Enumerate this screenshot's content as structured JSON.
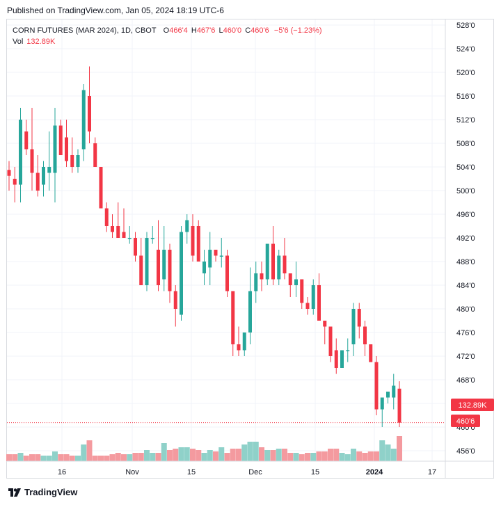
{
  "header": {
    "published": "Published on TradingView.com, Jan 05, 2024 18:19 UTC-6"
  },
  "legend": {
    "title": "CORN FUTURES (MAR 2024), 1D, CBOT",
    "o_label": "O",
    "o_value": "466'4",
    "h_label": "H",
    "h_value": "467'6",
    "l_label": "L",
    "l_value": "460'0",
    "c_label": "C",
    "c_value": "460'6",
    "change": "−5'6 (−1.23%)",
    "vol_label": "Vol",
    "vol_value": "132.89K"
  },
  "footer": {
    "brand": "TradingView"
  },
  "colors": {
    "up": "#26a69a",
    "down": "#f23645",
    "vol_up": "#8fd1c9",
    "vol_down": "#f49a9f",
    "grid": "#f0f3fa",
    "text": "#131722",
    "axis": "#d9dbe0"
  },
  "chart_data": {
    "type": "candlestick",
    "x_tick_labels": [
      "16",
      "Nov",
      "15",
      "Dec",
      "15",
      "2024",
      "17"
    ],
    "y_tick_labels": [
      "456'0",
      "460'0",
      "464'0",
      "468'0",
      "472'0",
      "476'0",
      "480'0",
      "484'0",
      "488'0",
      "492'0",
      "496'0",
      "500'0",
      "504'0",
      "508'0",
      "512'0",
      "516'0",
      "520'0",
      "524'0",
      "528'0"
    ],
    "y_range": [
      455,
      528
    ],
    "last_price_label": "460'6",
    "volume_label": "132.89K",
    "candles": [
      {
        "o": 503.5,
        "h": 505,
        "l": 500,
        "c": 502.5,
        "v": 0.05
      },
      {
        "o": 502,
        "h": 504,
        "l": 498,
        "c": 501,
        "v": 0.05
      },
      {
        "o": 501,
        "h": 514,
        "l": 498,
        "c": 512,
        "v": 0.06
      },
      {
        "o": 510,
        "h": 512,
        "l": 506,
        "c": 507,
        "v": 0.04
      },
      {
        "o": 507,
        "h": 514,
        "l": 500,
        "c": 503,
        "v": 0.05
      },
      {
        "o": 503,
        "h": 506,
        "l": 499,
        "c": 500,
        "v": 0.05
      },
      {
        "o": 501,
        "h": 505,
        "l": 499,
        "c": 504,
        "v": 0.04
      },
      {
        "o": 503,
        "h": 510,
        "l": 500,
        "c": 504,
        "v": 0.04
      },
      {
        "o": 503,
        "h": 514,
        "l": 498,
        "c": 511,
        "v": 0.07
      },
      {
        "o": 511,
        "h": 512,
        "l": 506,
        "c": 506,
        "v": 0.05
      },
      {
        "o": 509,
        "h": 512,
        "l": 504,
        "c": 505,
        "v": 0.05
      },
      {
        "o": 506,
        "h": 509,
        "l": 503,
        "c": 504,
        "v": 0.04
      },
      {
        "o": 504,
        "h": 507,
        "l": 503,
        "c": 506,
        "v": 0.04
      },
      {
        "o": 507,
        "h": 518,
        "l": 505,
        "c": 517,
        "v": 0.12
      },
      {
        "o": 516,
        "h": 521,
        "l": 508,
        "c": 510,
        "v": 0.15
      },
      {
        "o": 508,
        "h": 509,
        "l": 504,
        "c": 504,
        "v": 0.04
      },
      {
        "o": 504,
        "h": 504,
        "l": 497,
        "c": 497,
        "v": 0.04
      },
      {
        "o": 497,
        "h": 498,
        "l": 493,
        "c": 494,
        "v": 0.04
      },
      {
        "o": 494,
        "h": 496,
        "l": 492,
        "c": 493,
        "v": 0.05
      },
      {
        "o": 494,
        "h": 498,
        "l": 492,
        "c": 492,
        "v": 0.06
      },
      {
        "o": 493,
        "h": 497,
        "l": 492,
        "c": 492,
        "v": 0.05
      },
      {
        "o": 492,
        "h": 494,
        "l": 491,
        "c": 492,
        "v": 0.05
      },
      {
        "o": 492,
        "h": 493,
        "l": 488,
        "c": 489,
        "v": 0.06
      },
      {
        "o": 489,
        "h": 492,
        "l": 484,
        "c": 484,
        "v": 0.06
      },
      {
        "o": 484,
        "h": 493,
        "l": 483,
        "c": 492,
        "v": 0.08
      },
      {
        "o": 492,
        "h": 494,
        "l": 491,
        "c": 492,
        "v": 0.06
      },
      {
        "o": 490,
        "h": 495,
        "l": 483,
        "c": 484,
        "v": 0.06
      },
      {
        "o": 485,
        "h": 494,
        "l": 483,
        "c": 490,
        "v": 0.13
      },
      {
        "o": 490,
        "h": 491,
        "l": 481,
        "c": 483,
        "v": 0.08
      },
      {
        "o": 483,
        "h": 484,
        "l": 477,
        "c": 480,
        "v": 0.09
      },
      {
        "o": 479,
        "h": 494,
        "l": 478,
        "c": 493,
        "v": 0.1
      },
      {
        "o": 493,
        "h": 496,
        "l": 491,
        "c": 495,
        "v": 0.1
      },
      {
        "o": 494,
        "h": 496,
        "l": 488,
        "c": 489,
        "v": 0.09
      },
      {
        "o": 494,
        "h": 495,
        "l": 488,
        "c": 488,
        "v": 0.08
      },
      {
        "o": 486,
        "h": 490,
        "l": 484,
        "c": 488,
        "v": 0.06
      },
      {
        "o": 487,
        "h": 493,
        "l": 484,
        "c": 490,
        "v": 0.08
      },
      {
        "o": 490,
        "h": 490,
        "l": 488,
        "c": 489,
        "v": 0.07
      },
      {
        "o": 489,
        "h": 492,
        "l": 487,
        "c": 489,
        "v": 0.1
      },
      {
        "o": 489,
        "h": 490,
        "l": 482,
        "c": 483,
        "v": 0.06
      },
      {
        "o": 483,
        "h": 483,
        "l": 472,
        "c": 474,
        "v": 0.09
      },
      {
        "o": 474,
        "h": 477,
        "l": 472,
        "c": 473,
        "v": 0.09
      },
      {
        "o": 473,
        "h": 476,
        "l": 472,
        "c": 476,
        "v": 0.12
      },
      {
        "o": 476,
        "h": 487,
        "l": 474,
        "c": 483,
        "v": 0.14
      },
      {
        "o": 483,
        "h": 488,
        "l": 481,
        "c": 486,
        "v": 0.14
      },
      {
        "o": 486,
        "h": 488,
        "l": 483,
        "c": 485,
        "v": 0.1
      },
      {
        "o": 485,
        "h": 491,
        "l": 484,
        "c": 491,
        "v": 0.08
      },
      {
        "o": 491,
        "h": 494,
        "l": 484,
        "c": 485,
        "v": 0.08
      },
      {
        "o": 485,
        "h": 490,
        "l": 484,
        "c": 489,
        "v": 0.09
      },
      {
        "o": 489,
        "h": 492,
        "l": 485,
        "c": 486,
        "v": 0.09
      },
      {
        "o": 486,
        "h": 486,
        "l": 482,
        "c": 484,
        "v": 0.06
      },
      {
        "o": 484,
        "h": 488,
        "l": 482,
        "c": 485,
        "v": 0.06
      },
      {
        "o": 485,
        "h": 485,
        "l": 480,
        "c": 481,
        "v": 0.05
      },
      {
        "o": 481,
        "h": 482,
        "l": 479,
        "c": 480,
        "v": 0.06
      },
      {
        "o": 480,
        "h": 485,
        "l": 479,
        "c": 484,
        "v": 0.06
      },
      {
        "o": 484,
        "h": 486,
        "l": 478,
        "c": 478,
        "v": 0.07
      },
      {
        "o": 478,
        "h": 478,
        "l": 474,
        "c": 477,
        "v": 0.07
      },
      {
        "o": 477,
        "h": 477,
        "l": 471,
        "c": 472,
        "v": 0.09
      },
      {
        "o": 473,
        "h": 475,
        "l": 469,
        "c": 470,
        "v": 0.09
      },
      {
        "o": 470,
        "h": 473,
        "l": 470,
        "c": 473,
        "v": 0.06
      },
      {
        "o": 473,
        "h": 475,
        "l": 471,
        "c": 473,
        "v": 0.05
      },
      {
        "o": 474,
        "h": 481,
        "l": 472,
        "c": 480,
        "v": 0.09
      },
      {
        "o": 480,
        "h": 481,
        "l": 475,
        "c": 477,
        "v": 0.07
      },
      {
        "o": 477,
        "h": 478,
        "l": 472,
        "c": 474,
        "v": 0.06
      },
      {
        "o": 474,
        "h": 474,
        "l": 471,
        "c": 471,
        "v": 0.07
      },
      {
        "o": 471,
        "h": 472,
        "l": 462,
        "c": 463,
        "v": 0.07
      },
      {
        "o": 463,
        "h": 465,
        "l": 460,
        "c": 465,
        "v": 0.15
      },
      {
        "o": 465,
        "h": 466,
        "l": 464,
        "c": 466,
        "v": 0.12
      },
      {
        "o": 465,
        "h": 469,
        "l": 463,
        "c": 467,
        "v": 0.09
      },
      {
        "o": 466.5,
        "h": 467.75,
        "l": 460,
        "c": 460.75,
        "v": 0.18
      }
    ]
  }
}
